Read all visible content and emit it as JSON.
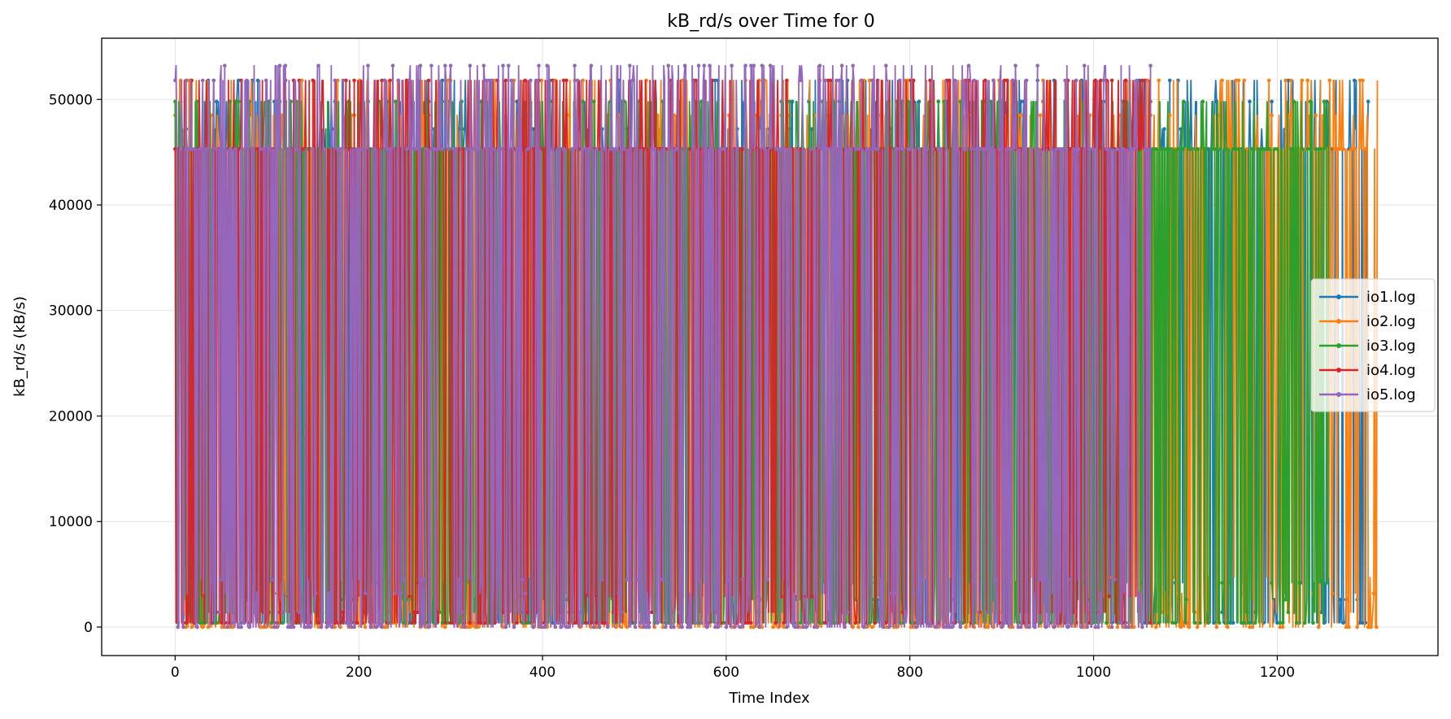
{
  "chart_data": {
    "type": "line",
    "title": "kB_rd/s over Time for 0",
    "xlabel": "Time Index",
    "ylabel": "kB_rd/s (kB/s)",
    "xlim": [
      -80,
      1375
    ],
    "ylim": [
      -2700,
      55800
    ],
    "xticks": [
      0,
      200,
      400,
      600,
      800,
      1000,
      1200
    ],
    "yticks": [
      0,
      10000,
      20000,
      30000,
      40000,
      50000
    ],
    "grid": true,
    "legend_position": "center-right",
    "series": [
      {
        "name": "io1.log",
        "color": "#1f77b4",
        "length": 1300,
        "low_values": [
          400,
          1400,
          2600,
          4200
        ],
        "high_values": [
          45300,
          47200,
          49800,
          51800
        ]
      },
      {
        "name": "io2.log",
        "color": "#ff7f0e",
        "length": 1310,
        "low_values": [
          0,
          400,
          1400,
          3200,
          4700
        ],
        "high_values": [
          45300,
          48500,
          51800
        ]
      },
      {
        "name": "io3.log",
        "color": "#2ca02c",
        "length": 1257,
        "low_values": [
          400,
          1400,
          2600,
          4200
        ],
        "high_values": [
          45300,
          49800
        ]
      },
      {
        "name": "io4.log",
        "color": "#d62728",
        "length": 1063,
        "low_values": [
          400,
          1400,
          2900
        ],
        "high_values": [
          45300,
          51800
        ]
      },
      {
        "name": "io5.log",
        "color": "#9467bd",
        "length": 1063,
        "low_values": [
          0,
          400,
          1400,
          3200,
          4500
        ],
        "high_values": [
          45300,
          51800,
          53200
        ]
      }
    ]
  }
}
